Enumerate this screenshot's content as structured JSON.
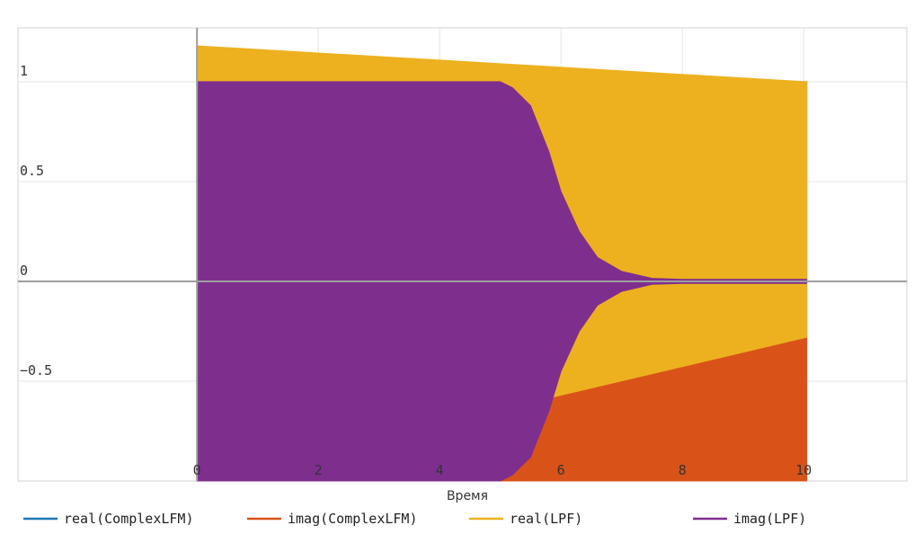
{
  "chart_data": {
    "type": "line",
    "xlabel": "Время",
    "ylabel": "",
    "xlim": [
      -2.95,
      11.7
    ],
    "ylim": [
      -1.0,
      1.27
    ],
    "x_ticks": [
      {
        "value": 0,
        "label": "0"
      },
      {
        "value": 2,
        "label": "2"
      },
      {
        "value": 4,
        "label": "4"
      },
      {
        "value": 6,
        "label": "6"
      },
      {
        "value": 8,
        "label": "8"
      },
      {
        "value": 10,
        "label": "10"
      }
    ],
    "y_ticks": [
      {
        "value": 1,
        "label": "1"
      },
      {
        "value": 0.5,
        "label": "0.5"
      },
      {
        "value": 0,
        "label": "0"
      },
      {
        "value": -0.5,
        "label": "−0.5"
      }
    ],
    "grid": true,
    "legend_position": "bottom",
    "series": [
      {
        "name": "real(ComplexLFM)",
        "color": "#1f77b4",
        "envelope": {
          "x": [
            0,
            10.05
          ],
          "upper": [
            1.0,
            1.0
          ],
          "lower": [
            -1.0,
            -1.0
          ]
        }
      },
      {
        "name": "imag(ComplexLFM)",
        "color": "#d95319",
        "envelope": {
          "x": [
            0,
            10.05
          ],
          "upper": [
            1.0,
            1.0
          ],
          "lower": [
            -1.0,
            -1.0
          ]
        }
      },
      {
        "name": "real(LPF)",
        "color": "#edb120",
        "envelope": {
          "x": [
            0,
            10.05
          ],
          "upper": [
            1.18,
            1.0
          ],
          "lower": [
            -1.0,
            -0.28
          ]
        }
      },
      {
        "name": "imag(LPF)",
        "color": "#7e2f8e",
        "envelope": {
          "x": [
            0,
            5.0,
            5.2,
            5.5,
            5.8,
            6.0,
            6.3,
            6.6,
            7.0,
            7.5,
            8.0,
            9.0,
            10.05
          ],
          "upper": [
            1.0,
            1.0,
            0.97,
            0.88,
            0.65,
            0.45,
            0.25,
            0.12,
            0.05,
            0.015,
            0.01,
            0.01,
            0.01
          ],
          "lower": [
            -1.0,
            -1.0,
            -0.97,
            -0.88,
            -0.65,
            -0.45,
            -0.25,
            -0.12,
            -0.05,
            -0.015,
            -0.01,
            -0.01,
            -0.01
          ]
        }
      }
    ]
  }
}
